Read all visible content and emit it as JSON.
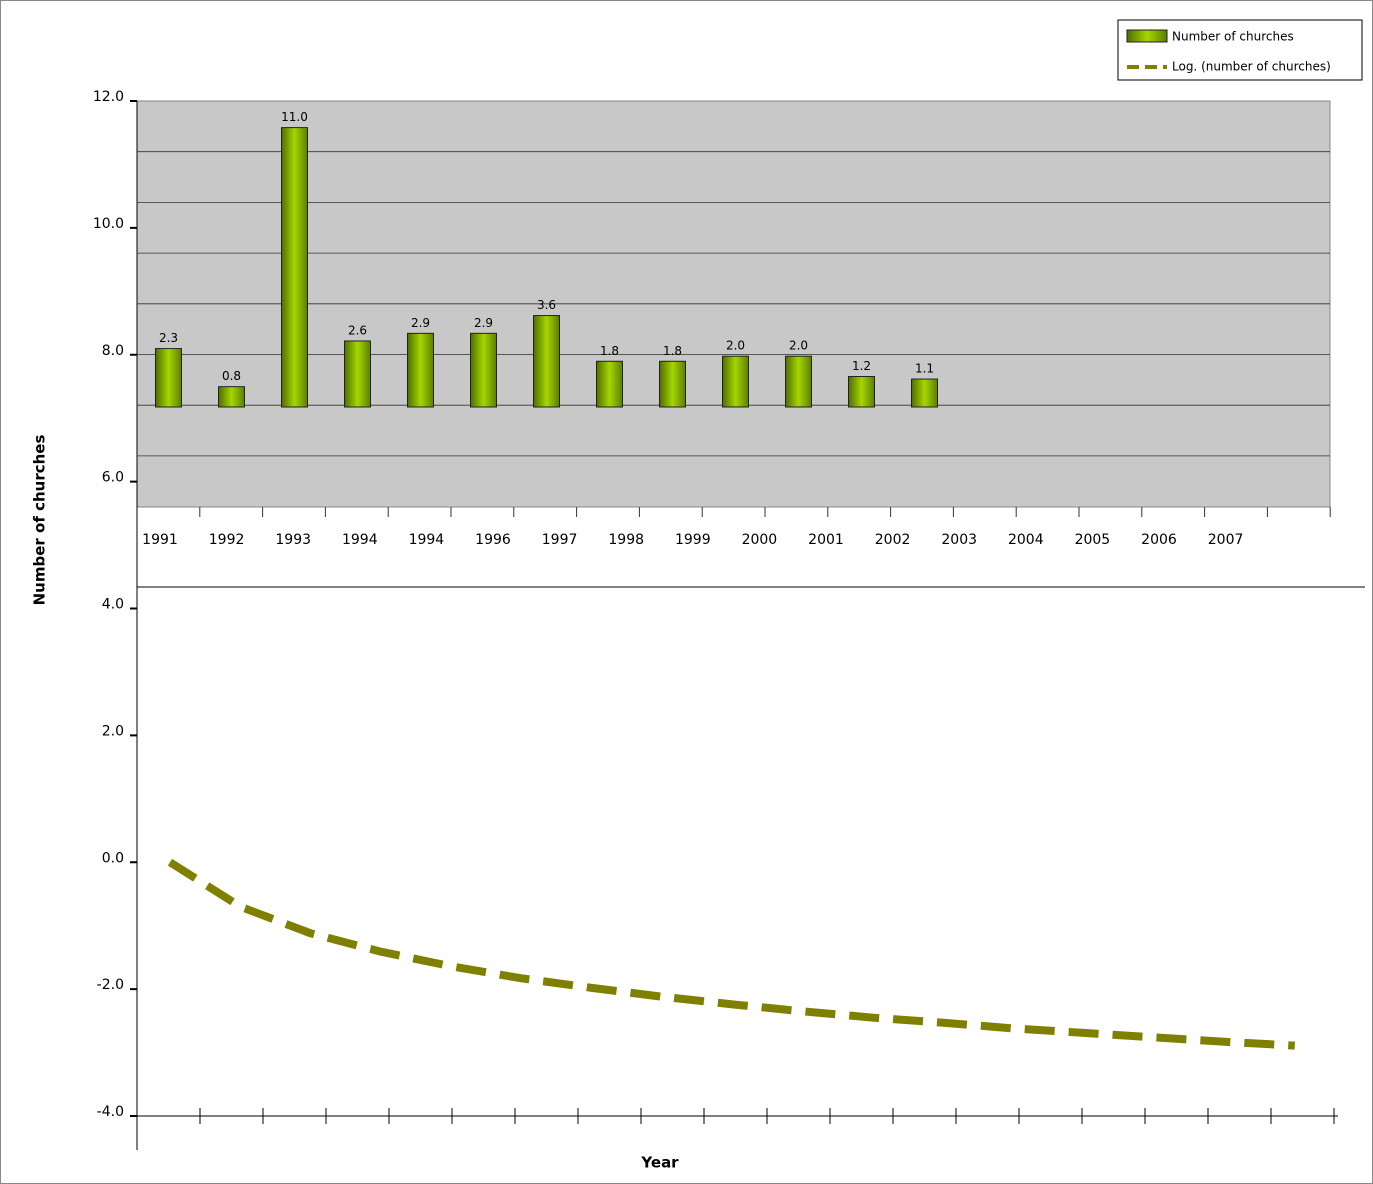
{
  "chart_data": {
    "type": "bar",
    "y_label": "Number of churches",
    "x_label": "Year",
    "categories": [
      "1991",
      "1992",
      "1993",
      "1994",
      "1994",
      "1996",
      "1997",
      "1998",
      "1999",
      "2000",
      "2001",
      "2002",
      "2003",
      "2004",
      "2005",
      "2006",
      "2007"
    ],
    "series": [
      {
        "name": "Number of churches",
        "color": "#8fbf00",
        "values": [
          2.3,
          0.8,
          11.0,
          2.6,
          2.9,
          2.9,
          3.6,
          1.8,
          1.8,
          2.0,
          2.0,
          1.2,
          1.1,
          null,
          null,
          null,
          null
        ],
        "value_labels": [
          "2.3",
          "0.8",
          "11.0",
          "2.6",
          "2.9",
          "2.9",
          "3.6",
          "1.8",
          "1.8",
          "2.0",
          "2.0",
          "1.2",
          "1.1",
          null,
          null,
          null,
          null
        ]
      },
      {
        "name": "Log. (number of churches)",
        "color": "#808000",
        "type": "line",
        "values": [
          0,
          -0.7,
          -1.12,
          -1.41,
          -1.64,
          -1.83,
          -1.98,
          -2.12,
          -2.24,
          -2.35,
          -2.45,
          -2.53,
          -2.62,
          -2.69,
          -2.76,
          -2.83,
          -2.89
        ]
      }
    ],
    "ylim": [
      -4,
      12
    ],
    "yticks": [
      {
        "value": 12,
        "label": "12.0"
      },
      {
        "value": 10,
        "label": "10.0"
      },
      {
        "value": 8,
        "label": "8.0"
      },
      {
        "value": 6,
        "label": "6.0"
      },
      {
        "value": 4,
        "label": "4.0"
      },
      {
        "value": 2,
        "label": "2.0"
      },
      {
        "value": 0,
        "label": "0.0"
      },
      {
        "value": -2,
        "label": "-2.0"
      },
      {
        "value": -4,
        "label": "-4.0"
      }
    ],
    "legend": "top-right"
  }
}
